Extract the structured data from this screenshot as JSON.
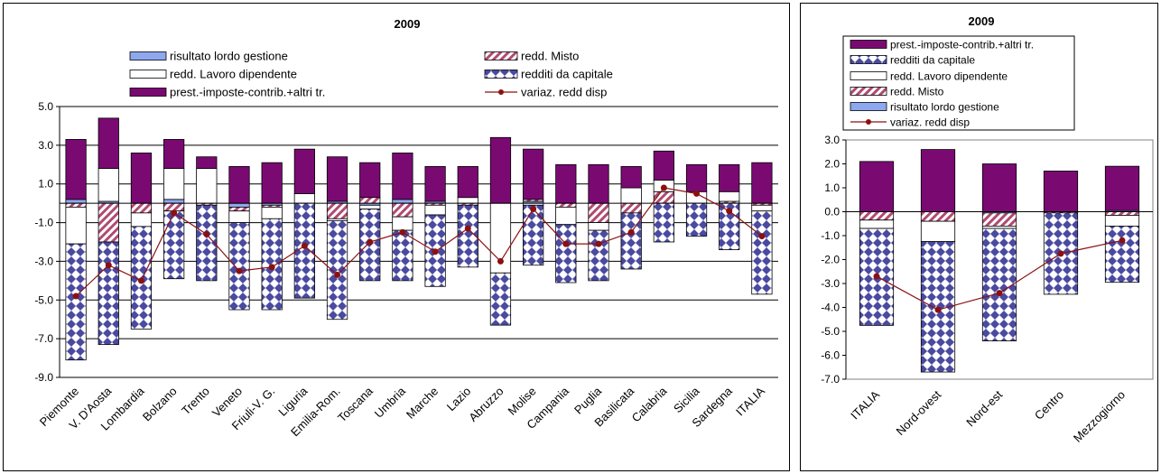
{
  "chart_data": [
    {
      "type": "bar",
      "stacked": true,
      "title": "2009",
      "xlabel": "",
      "ylabel": "",
      "ylim": [
        -9.0,
        5.0
      ],
      "yticks": [
        "5.0",
        "3.0",
        "1.0",
        "-1.0",
        "-3.0",
        "-5.0",
        "-7.0",
        "-9.0"
      ],
      "grid": true,
      "legend_position": "top",
      "categories": [
        "Piemonte",
        "V. D'Aosta",
        "Lombardia",
        "Bolzano",
        "Trento",
        "Veneto",
        "Friuli-V. G.",
        "Liguria",
        "Emilia-Rom.",
        "Toscana",
        "Umbria",
        "Marche",
        "Lazio",
        "Abruzzo",
        "Molise",
        "Campania",
        "Puglia",
        "Basilicata",
        "Calabria",
        "Sicilia",
        "Sardegna",
        "ITALIA"
      ],
      "series": [
        {
          "name": "risultato lordo gestione",
          "values": [
            0.2,
            0.1,
            0.0,
            0.2,
            0.0,
            -0.2,
            -0.1,
            0.0,
            0.1,
            -0.1,
            0.2,
            0.1,
            0.0,
            0.0,
            0.1,
            0.0,
            0.0,
            0.0,
            0.0,
            0.0,
            0.0,
            0.0
          ]
        },
        {
          "name": "redd. Misto",
          "values": [
            -0.2,
            -2.0,
            -0.5,
            -0.4,
            -0.1,
            -0.2,
            -0.1,
            0.0,
            -0.8,
            0.3,
            -0.7,
            -0.1,
            -0.1,
            0.0,
            0.1,
            -0.2,
            -1.0,
            -0.5,
            0.6,
            0.0,
            0.1,
            -0.1
          ]
        },
        {
          "name": "redd. Lavoro dipendente",
          "values": [
            -1.9,
            1.7,
            -0.7,
            1.6,
            1.8,
            -0.6,
            -0.6,
            0.5,
            -0.1,
            -0.2,
            -0.7,
            -0.5,
            0.3,
            -3.6,
            -0.1,
            -0.9,
            -0.4,
            0.8,
            0.6,
            0.6,
            0.5,
            -0.3
          ]
        },
        {
          "name": "redditi da capitale",
          "values": [
            -6.0,
            -5.3,
            -5.3,
            -3.5,
            -3.9,
            -4.5,
            -4.7,
            -4.9,
            -5.1,
            -3.7,
            -2.6,
            -3.7,
            -3.2,
            -2.7,
            -3.1,
            -3.0,
            -2.6,
            -2.9,
            -2.0,
            -1.7,
            -2.4,
            -4.3
          ]
        },
        {
          "name": "prest.-imposte-contrib.+altri tr.",
          "values": [
            3.1,
            2.6,
            2.6,
            1.5,
            0.6,
            1.9,
            2.1,
            2.3,
            2.3,
            1.8,
            2.4,
            1.8,
            1.6,
            3.4,
            2.6,
            2.0,
            2.0,
            1.1,
            1.5,
            1.4,
            1.4,
            2.1
          ]
        },
        {
          "name": "variaz. redd disp",
          "type": "line",
          "values": [
            -4.8,
            -3.2,
            -4.0,
            -0.5,
            -1.6,
            -3.5,
            -3.3,
            -2.2,
            -3.7,
            -2.0,
            -1.5,
            -2.5,
            -1.3,
            -3.0,
            -0.3,
            -2.1,
            -2.1,
            -1.5,
            0.8,
            0.5,
            -0.4,
            -1.7
          ]
        }
      ]
    },
    {
      "type": "bar",
      "stacked": true,
      "title": "2009",
      "xlabel": "",
      "ylabel": "",
      "ylim": [
        -7.0,
        3.0
      ],
      "yticks": [
        "3.0",
        "2.0",
        "1.0",
        "0.0",
        "-1.0",
        "-2.0",
        "-3.0",
        "-4.0",
        "-5.0",
        "-6.0",
        "-7.0"
      ],
      "grid": false,
      "legend_position": "top",
      "categories": [
        "ITALIA",
        "Nord-ovest",
        "Nord-est",
        "Centro",
        "Mezzogiorno"
      ],
      "series": [
        {
          "name": "prest.-imposte-contrib.+altri tr.",
          "values": [
            2.1,
            2.6,
            2.0,
            1.7,
            1.85
          ]
        },
        {
          "name": "redditi da capitale",
          "values": [
            -4.05,
            -5.45,
            -4.7,
            -3.4,
            -2.35
          ]
        },
        {
          "name": "redd. Lavoro dipendente",
          "values": [
            -0.35,
            -0.85,
            -0.1,
            0.0,
            -0.45
          ]
        },
        {
          "name": "redd. Misto",
          "values": [
            -0.35,
            -0.4,
            -0.55,
            -0.05,
            -0.15
          ]
        },
        {
          "name": "risultato lordo gestione",
          "values": [
            0.0,
            0.0,
            -0.05,
            0.0,
            0.05
          ]
        },
        {
          "name": "variaz. redd disp",
          "type": "line",
          "values": [
            -2.7,
            -4.1,
            -3.4,
            -1.75,
            -1.2
          ]
        }
      ]
    }
  ],
  "colors": {
    "purple": "#7a0a72",
    "misto_stripe": "#b04a70",
    "lavoro": "#ffffff",
    "capitale_blue": "#4a4aa0",
    "rlg_blue": "#8ea8f0",
    "line": "#8b1010"
  }
}
